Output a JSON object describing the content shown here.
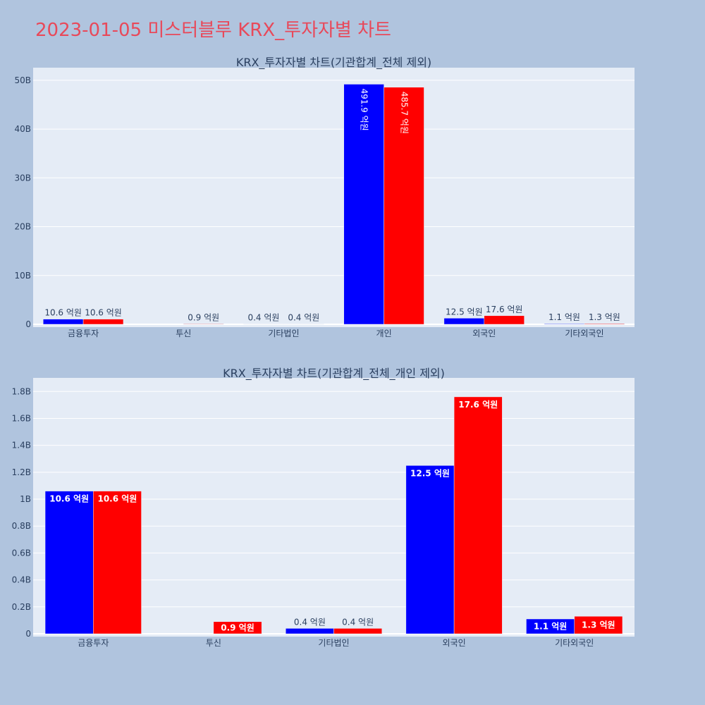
{
  "page_title": "2023-01-05 미스터블루 KRX_투자자별 차트",
  "colors": {
    "series_1": "#0000ff",
    "series_2": "#ff0000",
    "title": "#e8495a"
  },
  "chart_data": [
    {
      "type": "bar",
      "title": "KRX_투자자별 차트(기관합계_전체 제외)",
      "categories": [
        "금융투자",
        "투신",
        "기타법인",
        "개인",
        "외국인",
        "기타외국인"
      ],
      "series": [
        {
          "name": "series_1",
          "values": [
            1060000000,
            0,
            40000000,
            49190000000,
            1250000000,
            110000000
          ],
          "labels": [
            "10.6 억원",
            "",
            "0.4 억원",
            "491.9 억원",
            "12.5 억원",
            "1.1 억원"
          ]
        },
        {
          "name": "series_2",
          "values": [
            1060000000,
            90000000,
            40000000,
            48570000000,
            1760000000,
            130000000
          ],
          "labels": [
            "10.6 억원",
            "0.9 억원",
            "0.4 억원",
            "485.7 억원",
            "17.6 억원",
            "1.3 억원"
          ]
        }
      ],
      "ylim": [
        0,
        52000000000
      ],
      "yticks": [
        0,
        10000000000,
        20000000000,
        30000000000,
        40000000000,
        50000000000
      ],
      "ytick_labels": [
        "0",
        "10B",
        "20B",
        "30B",
        "40B",
        "50B"
      ],
      "grid": true
    },
    {
      "type": "bar",
      "title": "KRX_투자자별 차트(기관합계_전체_개인 제외)",
      "categories": [
        "금융투자",
        "투신",
        "기타법인",
        "외국인",
        "기타외국인"
      ],
      "series": [
        {
          "name": "series_1",
          "values": [
            1060000000,
            0,
            40000000,
            1250000000,
            110000000
          ],
          "labels": [
            "10.6 억원",
            "",
            "0.4 억원",
            "12.5 억원",
            "1.1 억원"
          ]
        },
        {
          "name": "series_2",
          "values": [
            1060000000,
            90000000,
            40000000,
            1760000000,
            130000000
          ],
          "labels": [
            "10.6 억원",
            "0.9 억원",
            "0.4 억원",
            "17.6 억원",
            "1.3 억원"
          ]
        }
      ],
      "ylim": [
        0,
        1880000000
      ],
      "yticks": [
        0,
        200000000,
        400000000,
        600000000,
        800000000,
        1000000000,
        1200000000,
        1400000000,
        1600000000,
        1800000000
      ],
      "ytick_labels": [
        "0",
        "0.2B",
        "0.4B",
        "0.6B",
        "0.8B",
        "1B",
        "1.2B",
        "1.4B",
        "1.6B",
        "1.8B"
      ],
      "grid": true
    }
  ]
}
